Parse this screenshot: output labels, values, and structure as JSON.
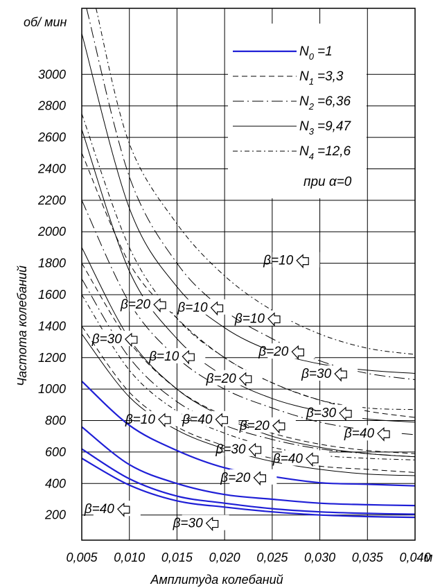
{
  "chart_data": {
    "type": "line",
    "title": "",
    "xlabel": "Амплитуда колебаний",
    "ylabel": "Частота колебаний",
    "y_unit_label": "об/ мин",
    "x_unit_label": "м",
    "xlim": [
      0.005,
      0.04
    ],
    "ylim": [
      40,
      3420
    ],
    "grid": true,
    "legend_position": "top-right",
    "x_ticks": [
      "0,005",
      "0,010",
      "0,015",
      "0,020",
      "0,025",
      "0,030",
      "0,035",
      "0,040"
    ],
    "y_ticks": [
      "200",
      "400",
      "600",
      "800",
      "1000",
      "1200",
      "1400",
      "1600",
      "1800",
      "2000",
      "2200",
      "2400",
      "2600",
      "2800",
      "3000"
    ],
    "legend_note": "при α=0",
    "legend": [
      {
        "label": "N",
        "sub": "0",
        "value": "=1",
        "style": "solid-blue",
        "color": "#1f1fd6"
      },
      {
        "label": "N",
        "sub": "1",
        "value": "=3,3",
        "style": "dashed"
      },
      {
        "label": "N",
        "sub": "2",
        "value": "=6,36",
        "style": "long-dash-dot"
      },
      {
        "label": "N",
        "sub": "3",
        "value": "=9,47",
        "style": "solid-thin"
      },
      {
        "label": "N",
        "sub": "4",
        "value": "=12,6",
        "style": "dash-dot"
      }
    ],
    "series": [
      {
        "name": "N0=1",
        "style": "solid-blue",
        "curves": [
          {
            "beta": "10",
            "x": [
              0.005,
              0.01,
              0.015,
              0.02,
              0.025,
              0.03,
              0.035,
              0.04
            ],
            "y": [
              1050,
              770,
              610,
              500,
              445,
              405,
              395,
              385
            ]
          },
          {
            "beta": "20",
            "x": [
              0.005,
              0.01,
              0.015,
              0.02,
              0.025,
              0.03,
              0.035,
              0.04
            ],
            "y": [
              760,
              520,
              400,
              330,
              300,
              275,
              265,
              260
            ]
          },
          {
            "beta": "30",
            "x": [
              0.005,
              0.01,
              0.015,
              0.02,
              0.025,
              0.03,
              0.035,
              0.04
            ],
            "y": [
              620,
              430,
              320,
              275,
              240,
              220,
              210,
              205
            ]
          },
          {
            "beta": "40",
            "x": [
              0.005,
              0.01,
              0.015,
              0.02,
              0.025,
              0.03,
              0.035,
              0.04
            ],
            "y": [
              560,
              390,
              290,
              250,
              220,
              200,
              190,
              185
            ]
          }
        ]
      },
      {
        "name": "N1=3,3",
        "style": "dashed",
        "curves": [
          {
            "beta": "10",
            "x": [
              0.005,
              0.01,
              0.015,
              0.02,
              0.025,
              0.03,
              0.035,
              0.04
            ],
            "y": [
              2500,
              1800,
              1450,
              1200,
              1040,
              930,
              860,
              820
            ]
          },
          {
            "beta": "20",
            "x": [
              0.005,
              0.01,
              0.015,
              0.02,
              0.025,
              0.03,
              0.035,
              0.04
            ],
            "y": [
              1800,
              1300,
              1000,
              830,
              720,
              650,
              610,
              590
            ]
          },
          {
            "beta": "30",
            "x": [
              0.005,
              0.01,
              0.015,
              0.02,
              0.025,
              0.03,
              0.035,
              0.04
            ],
            "y": [
              1400,
              980,
              760,
              640,
              560,
              510,
              490,
              470
            ]
          }
        ]
      },
      {
        "name": "N2=6,36",
        "style": "long-dash-dot",
        "curves": [
          {
            "beta": "10",
            "x": [
              0.0055,
              0.01,
              0.015,
              0.02,
              0.025,
              0.03,
              0.035,
              0.04
            ],
            "y": [
              3420,
              2350,
              1800,
              1500,
              1320,
              1180,
              1100,
              1060
            ]
          },
          {
            "beta": "20",
            "x": [
              0.005,
              0.01,
              0.015,
              0.02,
              0.025,
              0.03,
              0.035,
              0.04
            ],
            "y": [
              2200,
              1550,
              1200,
              1000,
              880,
              790,
              740,
              710
            ]
          },
          {
            "beta": "30",
            "x": [
              0.005,
              0.01,
              0.015,
              0.02,
              0.025,
              0.03,
              0.035,
              0.04
            ],
            "y": [
              1700,
              1200,
              920,
              770,
              680,
              620,
              590,
              570
            ]
          }
        ]
      },
      {
        "name": "N3=9,47",
        "style": "solid-thin",
        "curves": [
          {
            "beta": "10",
            "x": [
              0.005,
              0.01,
              0.015,
              0.02,
              0.025,
              0.03,
              0.035,
              0.04
            ],
            "y": [
              3260,
              2150,
              1650,
              1390,
              1240,
              1160,
              1120,
              1100
            ]
          },
          {
            "beta": "20",
            "x": [
              0.005,
              0.01,
              0.015,
              0.02,
              0.025,
              0.03,
              0.035,
              0.04
            ],
            "y": [
              2650,
              1750,
              1320,
              1080,
              940,
              860,
              810,
              790
            ]
          },
          {
            "beta": "30",
            "x": [
              0.005,
              0.01,
              0.015,
              0.02,
              0.025,
              0.03,
              0.035,
              0.04
            ],
            "y": [
              1900,
              1320,
              1000,
              820,
              700,
              630,
              590,
              570
            ]
          },
          {
            "beta": "40",
            "x": [
              0.005,
              0.01,
              0.015,
              0.02,
              0.025,
              0.03,
              0.035,
              0.04
            ],
            "y": [
              1350,
              950,
              740,
              620,
              540,
              490,
              460,
              450
            ]
          }
        ]
      },
      {
        "name": "N4=12,6",
        "style": "dash-dot",
        "curves": [
          {
            "beta": "10",
            "x": [
              0.0065,
              0.01,
              0.015,
              0.02,
              0.025,
              0.03,
              0.035,
              0.04
            ],
            "y": [
              3420,
              2560,
              2050,
              1720,
              1500,
              1350,
              1260,
              1220
            ]
          },
          {
            "beta": "20",
            "x": [
              0.005,
              0.01,
              0.015,
              0.02,
              0.025,
              0.03,
              0.035,
              0.04
            ],
            "y": [
              2750,
              1900,
              1450,
              1200,
              1040,
              930,
              880,
              870
            ]
          },
          {
            "beta": "40",
            "x": [
              0.005,
              0.01,
              0.015,
              0.02,
              0.025,
              0.03,
              0.035,
              0.04
            ],
            "y": [
              1600,
              1120,
              860,
              720,
              630,
              580,
              560,
              550
            ]
          }
        ]
      }
    ],
    "annotations": [
      {
        "text": "β=10",
        "x": 0.0275,
        "y": 1800
      },
      {
        "text": "β=20",
        "x": 0.0125,
        "y": 1520
      },
      {
        "text": "β=10",
        "x": 0.0185,
        "y": 1500
      },
      {
        "text": "β=10",
        "x": 0.0245,
        "y": 1430
      },
      {
        "text": "β=30",
        "x": 0.0095,
        "y": 1300
      },
      {
        "text": "β=10",
        "x": 0.0155,
        "y": 1190
      },
      {
        "text": "β=20",
        "x": 0.027,
        "y": 1220
      },
      {
        "text": "β=30",
        "x": 0.0315,
        "y": 1080
      },
      {
        "text": "β=20",
        "x": 0.0215,
        "y": 1050
      },
      {
        "text": "β=10",
        "x": 0.013,
        "y": 790
      },
      {
        "text": "β=40",
        "x": 0.019,
        "y": 790
      },
      {
        "text": "β=20",
        "x": 0.025,
        "y": 750
      },
      {
        "text": "β=30",
        "x": 0.032,
        "y": 830
      },
      {
        "text": "β=40",
        "x": 0.036,
        "y": 700
      },
      {
        "text": "β=30",
        "x": 0.0225,
        "y": 600
      },
      {
        "text": "β=40",
        "x": 0.0285,
        "y": 540
      },
      {
        "text": "β=20",
        "x": 0.023,
        "y": 420
      },
      {
        "text": "β=40",
        "x": 0.0087,
        "y": 220
      },
      {
        "text": "β=30",
        "x": 0.018,
        "y": 130
      }
    ]
  }
}
